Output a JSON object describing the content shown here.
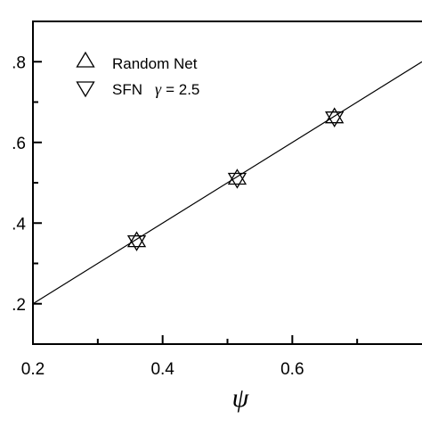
{
  "chart_data": {
    "type": "scatter",
    "xlabel": "ψ",
    "ylabel": "",
    "xlim": [
      0.2,
      0.8
    ],
    "ylim": [
      0.1,
      0.9
    ],
    "x_ticks": [
      0.2,
      0.4,
      0.6
    ],
    "x_tick_labels": [
      "0.2",
      "0.4",
      "0.6"
    ],
    "y_ticks": [
      0.2,
      0.4,
      0.6,
      0.8
    ],
    "y_tick_labels": [
      ".2",
      ".4",
      ".6",
      ".8"
    ],
    "grid": false,
    "legend_position": "top-left",
    "series": [
      {
        "name": "Random Net",
        "marker": "triangle-up",
        "x": [
          0.36,
          0.515,
          0.665
        ],
        "y": [
          0.355,
          0.51,
          0.662
        ]
      },
      {
        "name": "SFN",
        "name_suffix_symbol": "γ",
        "name_suffix_value": "= 2.5",
        "marker": "triangle-down",
        "x": [
          0.36,
          0.515,
          0.665
        ],
        "y": [
          0.355,
          0.51,
          0.662
        ]
      }
    ],
    "reference_line": {
      "x": [
        0.2,
        0.8
      ],
      "y": [
        0.2,
        0.8
      ]
    }
  }
}
